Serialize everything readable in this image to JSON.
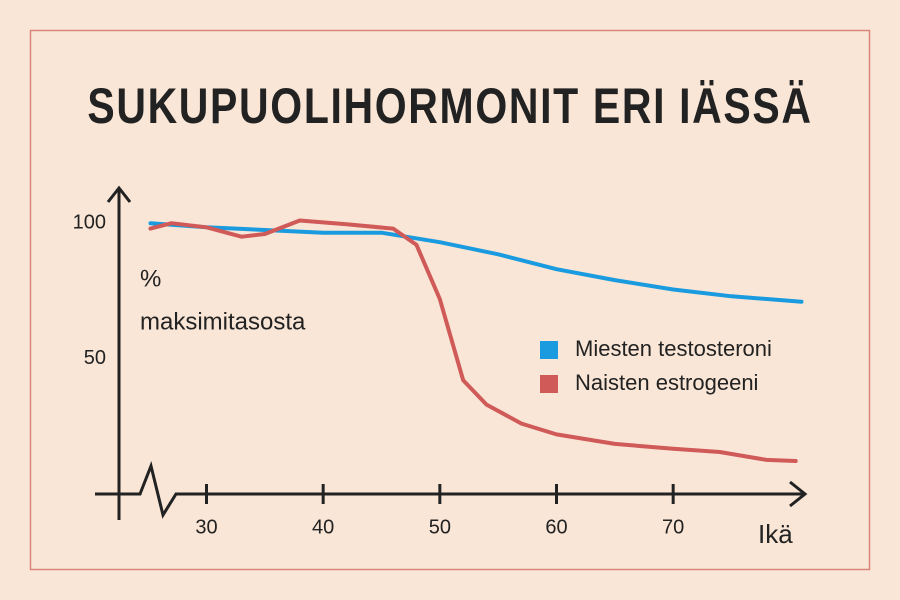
{
  "chart_data": {
    "type": "line",
    "title": "SUKUPUOLIHORMONIT ERI IÄSSÄ",
    "y_label": [
      "%",
      "maksimitasosta"
    ],
    "x_label": "Ikä",
    "xlim": [
      22.5,
      81.3
    ],
    "xticks": [
      30,
      40,
      50,
      60,
      70
    ],
    "ylim": [
      0,
      113
    ],
    "yticks": [
      50,
      100
    ],
    "series": [
      {
        "name": "Miesten testosteroni",
        "color": "#1a9be0",
        "x": [
          25.2,
          30,
          35,
          40,
          45,
          50,
          55,
          60,
          65,
          70,
          75,
          81
        ],
        "values": [
          100,
          98.5,
          97.5,
          96.5,
          96.5,
          93,
          88.5,
          83,
          79,
          75.5,
          73,
          71
        ]
      },
      {
        "name": "Naisten estrogeeni",
        "color": "#d05a58",
        "x": [
          25.2,
          27,
          30,
          33,
          35,
          38,
          42,
          46,
          48,
          50,
          52,
          54,
          57,
          60,
          65,
          70,
          74,
          78,
          80.5
        ],
        "values": [
          98,
          100,
          98.5,
          95,
          96,
          101,
          99.6,
          98,
          92,
          72,
          42,
          33,
          26,
          22,
          18.5,
          16.7,
          15.5,
          12.6,
          12.2
        ]
      }
    ],
    "legend": "right"
  }
}
